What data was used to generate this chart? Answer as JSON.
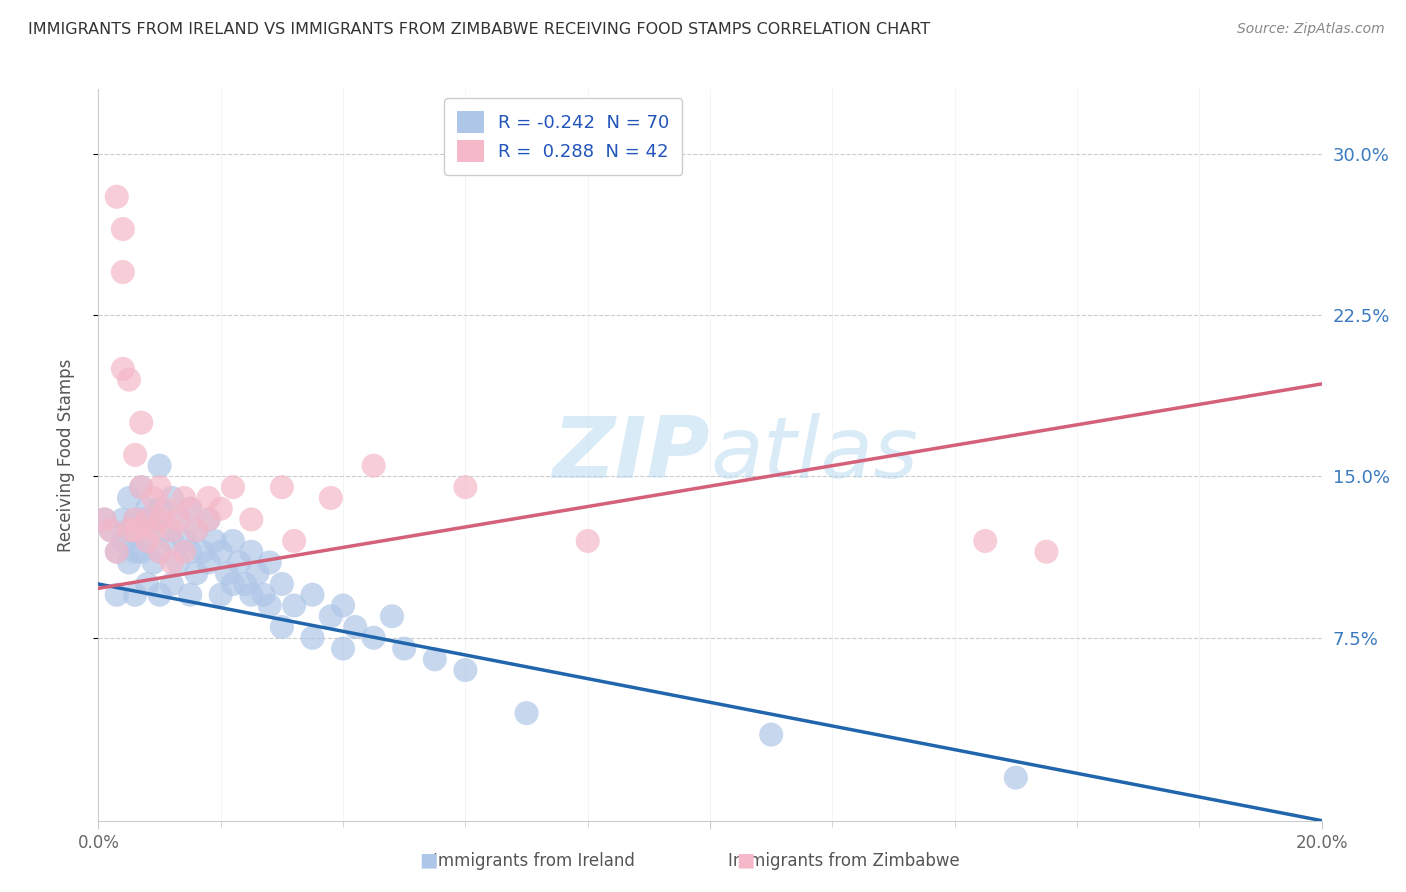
{
  "title": "IMMIGRANTS FROM IRELAND VS IMMIGRANTS FROM ZIMBABWE RECEIVING FOOD STAMPS CORRELATION CHART",
  "source": "Source: ZipAtlas.com",
  "ylabel": "Receiving Food Stamps",
  "ytick_vals": [
    0.075,
    0.15,
    0.225,
    0.3
  ],
  "ytick_labels": [
    "7.5%",
    "15.0%",
    "22.5%",
    "30.0%"
  ],
  "xrange": [
    0.0,
    0.2
  ],
  "yrange": [
    -0.01,
    0.33
  ],
  "ireland_color": "#aec6e8",
  "ireland_line_color": "#2166ac",
  "zimbabwe_color": "#f4b8c8",
  "zimbabwe_line_color": "#d4607a",
  "watermark": "ZIPatlas",
  "ireland_R": -0.242,
  "ireland_N": 70,
  "zimbabwe_R": 0.288,
  "zimbabwe_N": 42,
  "ireland_scatter": [
    [
      0.001,
      0.13
    ],
    [
      0.002,
      0.125
    ],
    [
      0.003,
      0.115
    ],
    [
      0.003,
      0.095
    ],
    [
      0.004,
      0.13
    ],
    [
      0.004,
      0.12
    ],
    [
      0.005,
      0.14
    ],
    [
      0.005,
      0.125
    ],
    [
      0.005,
      0.11
    ],
    [
      0.006,
      0.13
    ],
    [
      0.006,
      0.115
    ],
    [
      0.006,
      0.095
    ],
    [
      0.007,
      0.145
    ],
    [
      0.007,
      0.13
    ],
    [
      0.007,
      0.115
    ],
    [
      0.008,
      0.135
    ],
    [
      0.008,
      0.12
    ],
    [
      0.008,
      0.1
    ],
    [
      0.009,
      0.13
    ],
    [
      0.009,
      0.11
    ],
    [
      0.01,
      0.155
    ],
    [
      0.01,
      0.135
    ],
    [
      0.01,
      0.115
    ],
    [
      0.01,
      0.095
    ],
    [
      0.011,
      0.125
    ],
    [
      0.012,
      0.14
    ],
    [
      0.012,
      0.12
    ],
    [
      0.012,
      0.1
    ],
    [
      0.013,
      0.13
    ],
    [
      0.013,
      0.11
    ],
    [
      0.014,
      0.12
    ],
    [
      0.015,
      0.135
    ],
    [
      0.015,
      0.115
    ],
    [
      0.015,
      0.095
    ],
    [
      0.016,
      0.125
    ],
    [
      0.016,
      0.105
    ],
    [
      0.017,
      0.115
    ],
    [
      0.018,
      0.13
    ],
    [
      0.018,
      0.11
    ],
    [
      0.019,
      0.12
    ],
    [
      0.02,
      0.115
    ],
    [
      0.02,
      0.095
    ],
    [
      0.021,
      0.105
    ],
    [
      0.022,
      0.12
    ],
    [
      0.022,
      0.1
    ],
    [
      0.023,
      0.11
    ],
    [
      0.024,
      0.1
    ],
    [
      0.025,
      0.115
    ],
    [
      0.025,
      0.095
    ],
    [
      0.026,
      0.105
    ],
    [
      0.027,
      0.095
    ],
    [
      0.028,
      0.11
    ],
    [
      0.028,
      0.09
    ],
    [
      0.03,
      0.1
    ],
    [
      0.03,
      0.08
    ],
    [
      0.032,
      0.09
    ],
    [
      0.035,
      0.095
    ],
    [
      0.035,
      0.075
    ],
    [
      0.038,
      0.085
    ],
    [
      0.04,
      0.09
    ],
    [
      0.04,
      0.07
    ],
    [
      0.042,
      0.08
    ],
    [
      0.045,
      0.075
    ],
    [
      0.048,
      0.085
    ],
    [
      0.05,
      0.07
    ],
    [
      0.055,
      0.065
    ],
    [
      0.06,
      0.06
    ],
    [
      0.07,
      0.04
    ],
    [
      0.11,
      0.03
    ],
    [
      0.15,
      0.01
    ]
  ],
  "zimbabwe_scatter": [
    [
      0.001,
      0.13
    ],
    [
      0.002,
      0.125
    ],
    [
      0.003,
      0.28
    ],
    [
      0.003,
      0.115
    ],
    [
      0.004,
      0.265
    ],
    [
      0.004,
      0.245
    ],
    [
      0.004,
      0.2
    ],
    [
      0.005,
      0.125
    ],
    [
      0.005,
      0.195
    ],
    [
      0.006,
      0.16
    ],
    [
      0.006,
      0.13
    ],
    [
      0.006,
      0.125
    ],
    [
      0.007,
      0.175
    ],
    [
      0.007,
      0.145
    ],
    [
      0.008,
      0.13
    ],
    [
      0.008,
      0.12
    ],
    [
      0.009,
      0.14
    ],
    [
      0.009,
      0.125
    ],
    [
      0.01,
      0.145
    ],
    [
      0.01,
      0.13
    ],
    [
      0.01,
      0.115
    ],
    [
      0.011,
      0.135
    ],
    [
      0.012,
      0.125
    ],
    [
      0.012,
      0.11
    ],
    [
      0.013,
      0.13
    ],
    [
      0.014,
      0.14
    ],
    [
      0.014,
      0.115
    ],
    [
      0.015,
      0.135
    ],
    [
      0.016,
      0.125
    ],
    [
      0.018,
      0.14
    ],
    [
      0.018,
      0.13
    ],
    [
      0.02,
      0.135
    ],
    [
      0.022,
      0.145
    ],
    [
      0.025,
      0.13
    ],
    [
      0.03,
      0.145
    ],
    [
      0.032,
      0.12
    ],
    [
      0.038,
      0.14
    ],
    [
      0.045,
      0.155
    ],
    [
      0.06,
      0.145
    ],
    [
      0.08,
      0.12
    ],
    [
      0.145,
      0.12
    ],
    [
      0.155,
      0.115
    ]
  ]
}
